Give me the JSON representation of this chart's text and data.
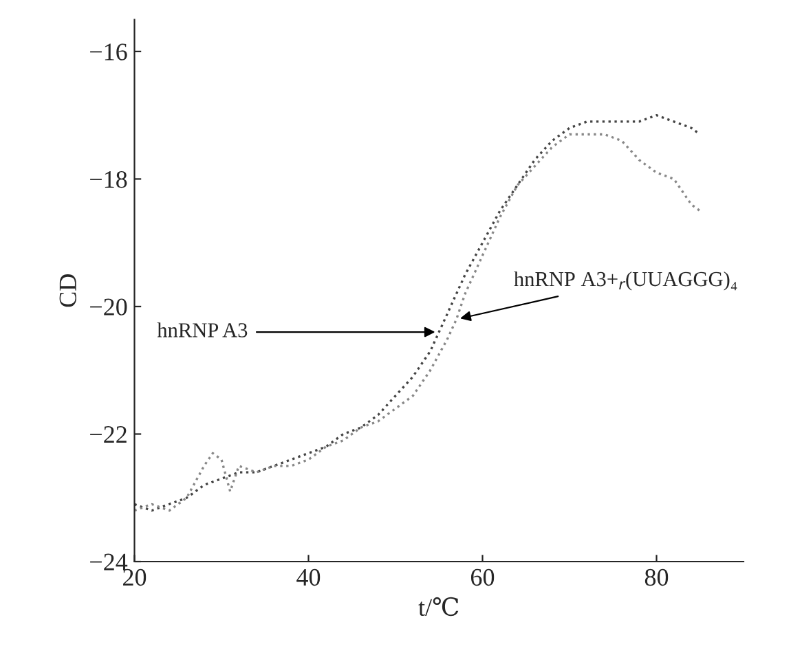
{
  "chart_data": {
    "type": "line",
    "xlabel": "t/℃",
    "ylabel": "CD",
    "xlim": [
      20,
      90
    ],
    "ylim": [
      -24,
      -15.5
    ],
    "xticks": [
      20,
      40,
      60,
      80
    ],
    "yticks": [
      {
        "value": -24,
        "label": "−24"
      },
      {
        "value": -22,
        "label": "−22"
      },
      {
        "value": -20,
        "label": "−20"
      },
      {
        "value": -18,
        "label": "−18"
      },
      {
        "value": -16,
        "label": "−16"
      }
    ],
    "grid": false,
    "marker": "none",
    "line_style": "dotted",
    "series": [
      {
        "color": "#444444",
        "x": [
          20,
          22,
          24,
          26,
          28,
          30,
          32,
          34,
          36,
          38,
          40,
          42,
          44,
          46,
          48,
          50,
          52,
          54,
          55,
          56,
          58,
          60,
          62,
          64,
          66,
          68,
          70,
          72,
          74,
          76,
          78,
          80,
          82,
          84,
          85
        ],
        "values": [
          -23.1,
          -23.2,
          -23.1,
          -23.0,
          -22.8,
          -22.7,
          -22.6,
          -22.6,
          -22.5,
          -22.4,
          -22.3,
          -22.2,
          -22.0,
          -21.9,
          -21.7,
          -21.4,
          -21.1,
          -20.7,
          -20.4,
          -20.1,
          -19.5,
          -19.0,
          -18.5,
          -18.1,
          -17.7,
          -17.4,
          -17.2,
          -17.1,
          -17.1,
          -17.1,
          -17.1,
          -17.0,
          -17.1,
          -17.2,
          -17.3
        ]
      },
      {
        "color": "#888888",
        "x": [
          20,
          22,
          24,
          26,
          28,
          29,
          30,
          31,
          32,
          34,
          36,
          38,
          40,
          42,
          44,
          46,
          48,
          50,
          52,
          54,
          56,
          57,
          58,
          60,
          62,
          64,
          66,
          68,
          70,
          72,
          74,
          76,
          78,
          80,
          82,
          84,
          85
        ],
        "values": [
          -23.2,
          -23.1,
          -23.2,
          -23.0,
          -22.5,
          -22.3,
          -22.4,
          -22.9,
          -22.5,
          -22.6,
          -22.5,
          -22.5,
          -22.4,
          -22.2,
          -22.1,
          -21.9,
          -21.8,
          -21.6,
          -21.4,
          -21.0,
          -20.5,
          -20.2,
          -19.8,
          -19.2,
          -18.6,
          -18.1,
          -17.8,
          -17.5,
          -17.3,
          -17.3,
          -17.3,
          -17.4,
          -17.7,
          -17.9,
          -18.0,
          -18.4,
          -18.5
        ]
      }
    ],
    "annotations": [
      {
        "text": "hnRNP A3",
        "x": 55,
        "y": -20.4
      },
      {
        "text": "hnRNP A3+$_{r}$(UUAGGG)₄",
        "x": 57,
        "y": -20.2
      }
    ]
  }
}
